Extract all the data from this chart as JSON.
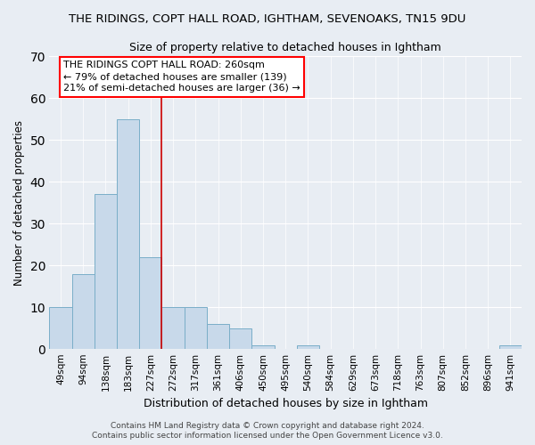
{
  "title": "THE RIDINGS, COPT HALL ROAD, IGHTHAM, SEVENOAKS, TN15 9DU",
  "subtitle": "Size of property relative to detached houses in Ightham",
  "xlabel": "Distribution of detached houses by size in Ightham",
  "ylabel": "Number of detached properties",
  "categories": [
    "49sqm",
    "94sqm",
    "138sqm",
    "183sqm",
    "227sqm",
    "272sqm",
    "317sqm",
    "361sqm",
    "406sqm",
    "450sqm",
    "495sqm",
    "540sqm",
    "584sqm",
    "629sqm",
    "673sqm",
    "718sqm",
    "763sqm",
    "807sqm",
    "852sqm",
    "896sqm",
    "941sqm"
  ],
  "values": [
    10,
    18,
    37,
    55,
    22,
    10,
    10,
    6,
    5,
    1,
    0,
    1,
    0,
    0,
    0,
    0,
    0,
    0,
    0,
    0,
    1
  ],
  "bar_color": "#c8d9ea",
  "bar_edge_color": "#7aaec8",
  "vline_x": 4.5,
  "vline_color": "#cc0000",
  "ylim": [
    0,
    70
  ],
  "yticks": [
    0,
    10,
    20,
    30,
    40,
    50,
    60,
    70
  ],
  "annotation_title": "THE RIDINGS COPT HALL ROAD: 260sqm",
  "annotation_line1": "← 79% of detached houses are smaller (139)",
  "annotation_line2": "21% of semi-detached houses are larger (36) →",
  "footer1": "Contains HM Land Registry data © Crown copyright and database right 2024.",
  "footer2": "Contains public sector information licensed under the Open Government Licence v3.0.",
  "bg_color": "#e8edf3",
  "plot_bg_color": "#e8edf3",
  "grid_color": "#ffffff"
}
